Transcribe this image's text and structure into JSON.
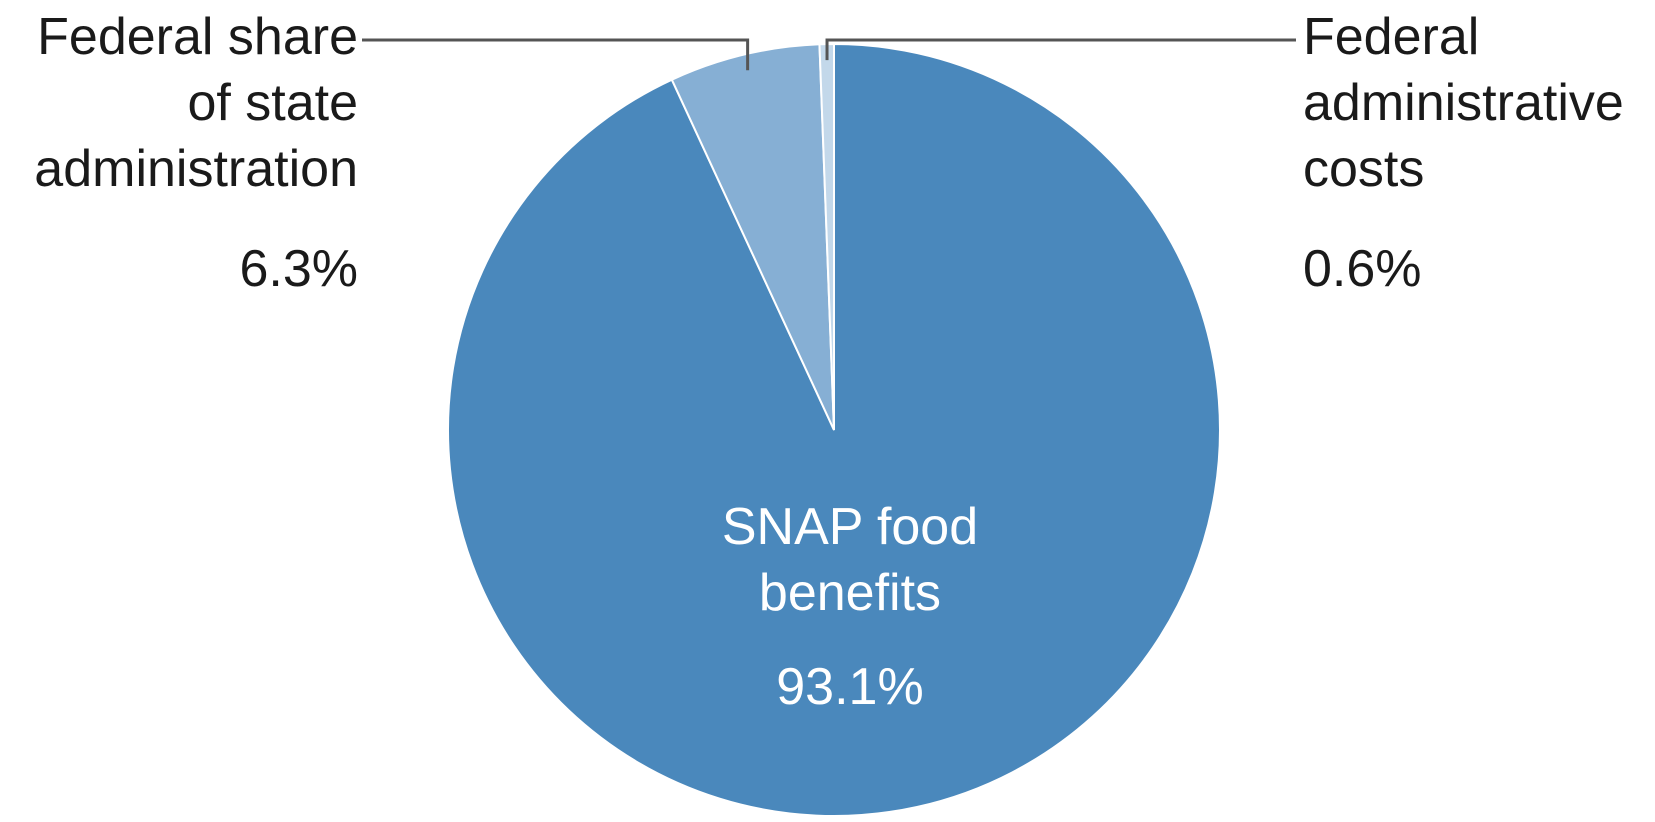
{
  "colors": {
    "snap_food_benefits": "#4A88BC",
    "federal_share_state_admin": "#86AFD4",
    "federal_admin_costs": "#C3D8EA",
    "leader_line": "#555555",
    "slice_border": "#ffffff"
  },
  "chart_data": {
    "type": "pie",
    "slices": [
      {
        "label_lines": [
          "SNAP food",
          "benefits"
        ],
        "value": 93.1,
        "value_label": "93.1%"
      },
      {
        "label_lines": [
          "Federal share",
          "of state",
          "administration"
        ],
        "value": 6.3,
        "value_label": "6.3%"
      },
      {
        "label_lines": [
          "Federal",
          "administrative",
          "costs"
        ],
        "value": 0.6,
        "value_label": "0.6%"
      }
    ],
    "start_angle": "12 o'clock, clockwise",
    "legend": "none"
  }
}
